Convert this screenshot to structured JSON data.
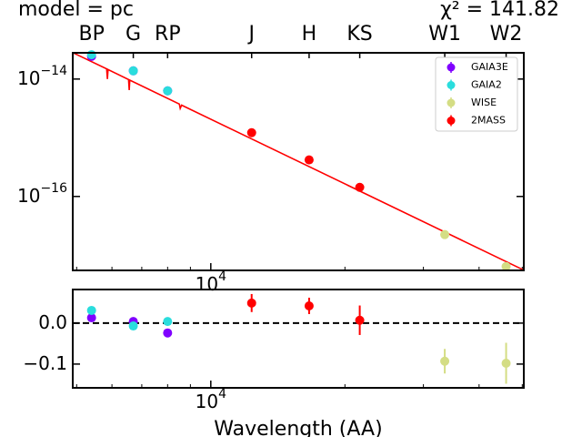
{
  "chart_data": [
    {
      "type": "scatter",
      "title_left": "model = pc",
      "title_right": "χ² = 141.82",
      "xscale": "log",
      "yscale": "log",
      "xlim": [
        4900,
        50400
      ],
      "ylim": [
        5.5e-18,
        2.8e-14
      ],
      "xticks": [
        {
          "value": 10000,
          "label": "10",
          "exponent": "4"
        }
      ],
      "xminorticks": [
        5000,
        6000,
        7000,
        8000,
        9000,
        20000,
        30000,
        40000,
        50000
      ],
      "x2ticks": [
        {
          "value": 5400,
          "label": "BP"
        },
        {
          "value": 6700,
          "label": "G"
        },
        {
          "value": 8000,
          "label": "RP"
        },
        {
          "value": 12350,
          "label": "J"
        },
        {
          "value": 16620,
          "label": "H"
        },
        {
          "value": 21590,
          "label": "KS"
        },
        {
          "value": 33500,
          "label": "W1"
        },
        {
          "value": 46000,
          "label": "W2"
        }
      ],
      "yticks": [
        {
          "value": 1e-14,
          "label": "10",
          "exponent": "−14"
        },
        {
          "value": 1e-16,
          "label": "10",
          "exponent": "−16"
        }
      ],
      "legend": "upper right",
      "model": {
        "color": "#ff0000",
        "x": [
          4900,
          5840,
          5860,
          5880,
          6540,
          6560,
          6580,
          8500,
          8540,
          8600,
          50400
        ],
        "values": [
          2.82e-14,
          1.49e-14,
          1e-14,
          1.45e-14,
          9.8e-15,
          6.5e-15,
          9.6e-15,
          3.75e-15,
          3.16e-15,
          3.59e-15,
          5.56e-18
        ]
      },
      "series": [
        {
          "name": "GAIA3E",
          "color": "#8000ff",
          "x": [
            5400,
            6700,
            8000
          ],
          "values": [
            2.44e-14,
            1.38e-14,
            6.3e-15
          ]
        },
        {
          "name": "GAIA2",
          "color": "#2adddd",
          "x": [
            5400,
            6700,
            8000
          ],
          "values": [
            2.6e-14,
            1.38e-14,
            6.3e-15
          ]
        },
        {
          "name": "WISE",
          "color": "#d4dd84",
          "x": [
            33500,
            46000
          ],
          "values": [
            2.24e-17,
            6.4e-18
          ]
        },
        {
          "name": "2MASS",
          "color": "#ff0000",
          "x": [
            12350,
            16620,
            21590
          ],
          "values": [
            1.22e-15,
            4.2e-16,
            1.43e-16
          ]
        }
      ]
    },
    {
      "type": "scatter",
      "xlabel": "Wavelength (AA)",
      "xscale": "log",
      "xlim": [
        4900,
        50400
      ],
      "ylim": [
        -0.158,
        0.082
      ],
      "xticks": [
        {
          "value": 10000,
          "label": "10",
          "exponent": "4"
        }
      ],
      "xminorticks": [
        5000,
        6000,
        7000,
        8000,
        9000,
        20000,
        30000,
        40000,
        50000
      ],
      "yticks": [
        {
          "value": 0,
          "label": "0.0"
        },
        {
          "value": -0.1,
          "label": "−0.1"
        }
      ],
      "reference_line": 0,
      "series": [
        {
          "color": "#8000ff",
          "x": [
            5400,
            6700,
            8000
          ],
          "values": [
            0.013,
            0.004,
            -0.024
          ]
        },
        {
          "color": "#2adddd",
          "x": [
            5400,
            6700,
            8000
          ],
          "values": [
            0.031,
            -0.007,
            0.004
          ]
        },
        {
          "color": "#ff0000",
          "x": [
            12350,
            16620,
            21590
          ],
          "values": [
            0.049,
            0.042,
            0.007
          ],
          "errors": [
            0.022,
            0.02,
            0.036
          ]
        },
        {
          "color": "#d4dd84",
          "x": [
            33500,
            46000
          ],
          "values": [
            -0.093,
            -0.098
          ],
          "errors": [
            0.03,
            0.05
          ]
        }
      ]
    }
  ]
}
